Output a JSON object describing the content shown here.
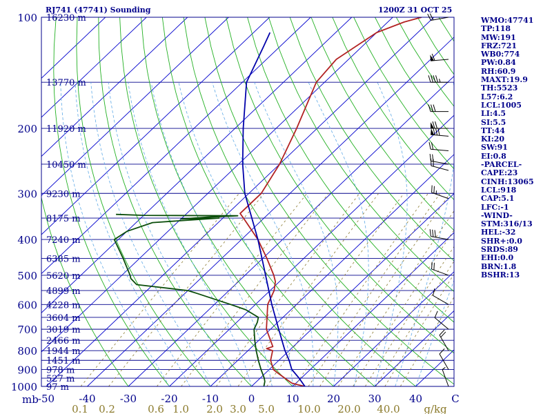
{
  "title": {
    "left": "RJ741 (47741) Sounding",
    "right": "1200Z 31 OCT 25"
  },
  "indices": [
    "WMO:47741",
    "TP:118",
    "MW:191",
    "FRZ:721",
    "WB0:774",
    "PW:0.84",
    "RH:60.9",
    "MAXT:19.9",
    "TH:5523",
    "L57:6.2",
    "LCL:1005",
    "LI:4.5",
    "SI:5.5",
    "TT:44",
    "KI:20",
    "SW:91",
    "EI:0.8",
    "-PARCEL-",
    "CAPE:23",
    "CINH:13065",
    "LCL:918",
    "CAP:5.1",
    "LFC:-1",
    "-WIND-",
    "STM:316/13",
    "HEL:-32",
    "SHR+:0.0",
    "SRDS:89",
    "EHI:0.0",
    "BRN:1.8",
    "BSHR:13"
  ],
  "chart_data": {
    "type": "skew-t",
    "units": {
      "pressure": "mb",
      "temperature": "C",
      "mixing_ratio": "g/kg"
    },
    "pressure_labels": [
      100,
      200,
      300,
      400,
      500,
      600,
      700,
      800,
      900,
      1000
    ],
    "pressure_axis_label": "mb",
    "temperature_ticks": [
      -50,
      -40,
      -30,
      -20,
      -10,
      0,
      10,
      20,
      30,
      40
    ],
    "temperature_end_label": "C",
    "mixing_ratio_ticks": [
      "0.1",
      "0.2",
      "0.6",
      "1.0",
      "2.0",
      "3.0",
      "5.0",
      "10.0",
      "20.0",
      "40.0"
    ],
    "mixing_ratio_label": "g/kg",
    "height_labels": [
      {
        "p": 100,
        "label": "16230 m"
      },
      {
        "p": 150,
        "label": "13770 m"
      },
      {
        "p": 200,
        "label": "11920 m"
      },
      {
        "p": 250,
        "label": "10450 m"
      },
      {
        "p": 300,
        "label": "9230 m"
      },
      {
        "p": 350,
        "label": "8175 m"
      },
      {
        "p": 400,
        "label": "7240 m"
      },
      {
        "p": 450,
        "label": "6385 m"
      },
      {
        "p": 500,
        "label": "5620 m"
      },
      {
        "p": 550,
        "label": "4899 m"
      },
      {
        "p": 600,
        "label": "4228 m"
      },
      {
        "p": 650,
        "label": "3604 m"
      },
      {
        "p": 700,
        "label": "3019 m"
      },
      {
        "p": 750,
        "label": "2466 m"
      },
      {
        "p": 800,
        "label": "1944 m"
      },
      {
        "p": 850,
        "label": "1451 m"
      },
      {
        "p": 900,
        "label": "978 m"
      },
      {
        "p": 950,
        "label": "527 m"
      },
      {
        "p": 1000,
        "label": "97 m"
      }
    ],
    "series": [
      {
        "name": "temperature",
        "color": "#b22222",
        "points": [
          [
            1000,
            13
          ],
          [
            990,
            11
          ],
          [
            980,
            9
          ],
          [
            925,
            3.5
          ],
          [
            900,
            1
          ],
          [
            850,
            -2
          ],
          [
            800,
            -4
          ],
          [
            790,
            -6
          ],
          [
            780,
            -5
          ],
          [
            700,
            -11
          ],
          [
            600,
            -17
          ],
          [
            550,
            -19
          ],
          [
            520,
            -21
          ],
          [
            500,
            -23
          ],
          [
            450,
            -29
          ],
          [
            400,
            -36
          ],
          [
            350,
            -45
          ],
          [
            340,
            -47
          ],
          [
            300,
            -47
          ],
          [
            250,
            -50
          ],
          [
            200,
            -55
          ],
          [
            150,
            -62
          ],
          [
            130,
            -63
          ],
          [
            110,
            -60
          ],
          [
            103,
            -56
          ],
          [
            100,
            -53
          ]
        ]
      },
      {
        "name": "dewpoint",
        "color": "#0a4d0a",
        "points": [
          [
            1000,
            3
          ],
          [
            970,
            2
          ],
          [
            950,
            1
          ],
          [
            900,
            -2
          ],
          [
            850,
            -5
          ],
          [
            800,
            -8
          ],
          [
            750,
            -11
          ],
          [
            700,
            -14
          ],
          [
            670,
            -15
          ],
          [
            650,
            -16
          ],
          [
            620,
            -21
          ],
          [
            600,
            -26
          ],
          [
            560,
            -37
          ],
          [
            550,
            -40
          ],
          [
            530,
            -54
          ],
          [
            510,
            -57
          ],
          [
            500,
            -58
          ],
          [
            450,
            -64
          ],
          [
            400,
            -71
          ],
          [
            380,
            -70
          ],
          [
            360,
            -66
          ],
          [
            350,
            -51
          ],
          [
            352,
            -60
          ],
          [
            348,
            -54
          ],
          [
            345,
            -47
          ],
          [
            344,
            -70
          ],
          [
            342,
            -77
          ]
        ]
      },
      {
        "name": "parcel",
        "color": "#0000aa",
        "points": [
          [
            1000,
            13
          ],
          [
            950,
            9.5
          ],
          [
            900,
            5.5
          ],
          [
            850,
            2.5
          ],
          [
            800,
            -1
          ],
          [
            700,
            -8
          ],
          [
            600,
            -16
          ],
          [
            500,
            -25
          ],
          [
            400,
            -36
          ],
          [
            300,
            -51
          ],
          [
            250,
            -59
          ],
          [
            200,
            -68
          ],
          [
            150,
            -79
          ],
          [
            120,
            -84
          ],
          [
            110,
            -86
          ]
        ]
      }
    ],
    "wind_barbs": [
      {
        "p": 100,
        "dir": 260,
        "speed": 20
      },
      {
        "p": 130,
        "dir": 265,
        "speed": 60
      },
      {
        "p": 150,
        "dir": 270,
        "speed": 45
      },
      {
        "p": 180,
        "dir": 270,
        "speed": 30
      },
      {
        "p": 200,
        "dir": 270,
        "speed": 70
      },
      {
        "p": 210,
        "dir": 275,
        "speed": 80
      },
      {
        "p": 230,
        "dir": 275,
        "speed": 20
      },
      {
        "p": 250,
        "dir": 280,
        "speed": 20
      },
      {
        "p": 260,
        "dir": 285,
        "speed": 20
      },
      {
        "p": 310,
        "dir": 290,
        "speed": 25
      },
      {
        "p": 400,
        "dir": 280,
        "speed": 30
      },
      {
        "p": 500,
        "dir": 290,
        "speed": 20
      },
      {
        "p": 600,
        "dir": 300,
        "speed": 10
      },
      {
        "p": 700,
        "dir": 310,
        "speed": 10
      },
      {
        "p": 800,
        "dir": 330,
        "speed": 20
      },
      {
        "p": 900,
        "dir": 330,
        "speed": 10
      },
      {
        "p": 1000,
        "dir": 340,
        "speed": 5
      }
    ],
    "colors": {
      "isobar": "#00008b",
      "isotherm": "#0000cd",
      "dry_adiabat": "#22b022",
      "moist_adiabat": "#5fa9e6",
      "mixing_ratio": "#8a7a30",
      "text": "#00008b",
      "mixing_text": "#8b7a2b",
      "wind": "#000000"
    },
    "grid": true
  }
}
